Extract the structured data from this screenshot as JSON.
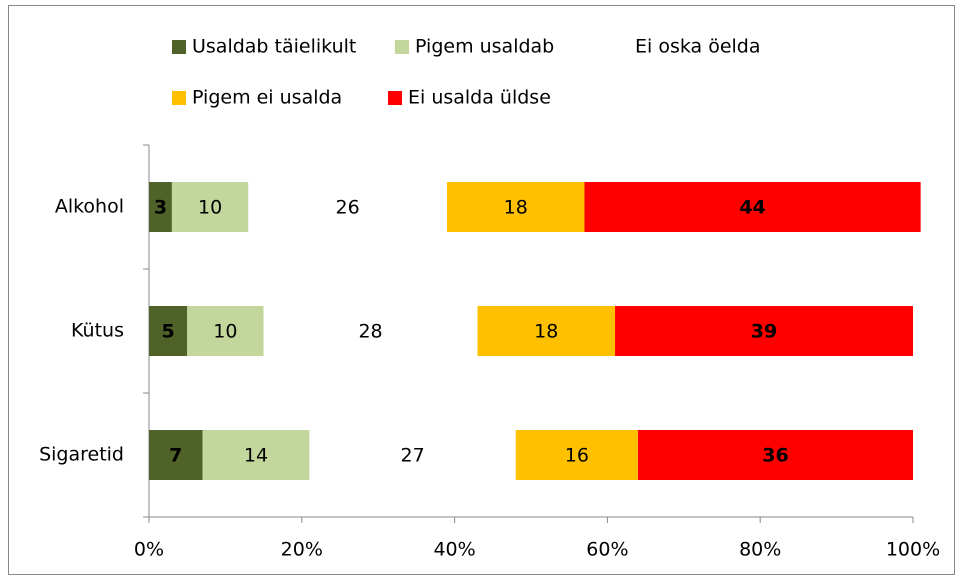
{
  "chart_data": {
    "type": "stacked_barh",
    "categories": [
      "Alkohol",
      "Kütus",
      "Sigaretid"
    ],
    "series": [
      {
        "name": "Usaldab täielikult",
        "color": "#4f6228",
        "values": [
          3,
          5,
          7
        ]
      },
      {
        "name": "Pigem usaldab",
        "color": "#c3d69b",
        "values": [
          10,
          10,
          14
        ]
      },
      {
        "name": "Ei oska öelda",
        "color": "#ffffff",
        "values": [
          26,
          28,
          27
        ]
      },
      {
        "name": "Pigem ei usalda",
        "color": "#ffc000",
        "values": [
          18,
          18,
          16
        ]
      },
      {
        "name": "Ei usalda üldse",
        "color": "#ff0000",
        "values": [
          44,
          39,
          36
        ]
      }
    ],
    "xlim": [
      0,
      100
    ],
    "xticks": [
      {
        "value": 0,
        "label": "0%"
      },
      {
        "value": 20,
        "label": "20%"
      },
      {
        "value": 40,
        "label": "40%"
      },
      {
        "value": 60,
        "label": "60%"
      },
      {
        "value": 80,
        "label": "80%"
      },
      {
        "value": 100,
        "label": "100%"
      }
    ],
    "legend": "top"
  }
}
